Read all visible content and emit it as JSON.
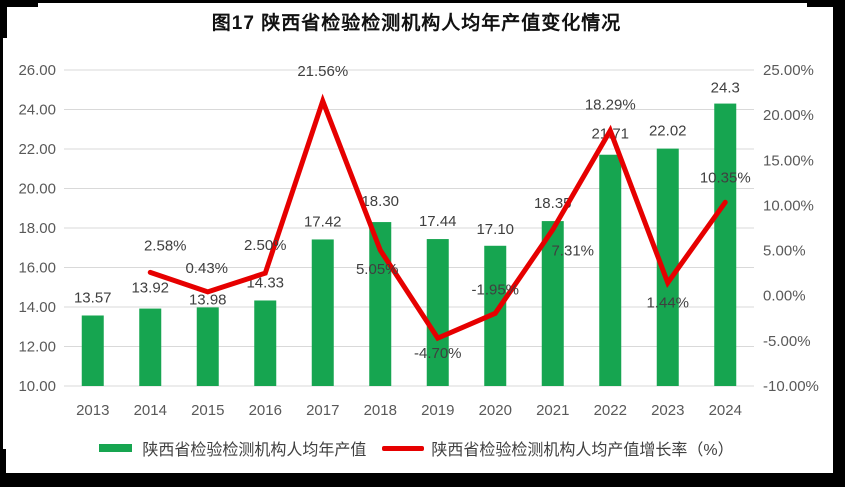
{
  "title": "图17 陕西省检验检测机构人均年产值变化情况",
  "colors": {
    "frame": "#000000",
    "background": "#ffffff",
    "bar_green": "#16a550",
    "line_red": "#e60000",
    "axis_text": "#595959",
    "data_label_text": "#3f3f3f",
    "gridline": "#d9d9d9",
    "title_text": "#111111"
  },
  "chart_data": {
    "type": "bar+line combo",
    "categories": [
      "2013",
      "2014",
      "2015",
      "2016",
      "2017",
      "2018",
      "2019",
      "2020",
      "2021",
      "2022",
      "2023",
      "2024"
    ],
    "series": [
      {
        "name": "陕西省检验检测机构人均年产值",
        "type": "bar",
        "axis": "left",
        "color": "#16a550",
        "values": [
          13.57,
          13.92,
          13.98,
          14.33,
          17.42,
          18.3,
          17.44,
          17.1,
          18.35,
          21.71,
          22.02,
          24.3
        ],
        "labels": [
          "13.57",
          "13.92",
          "13.98",
          "14.33",
          "17.42",
          "18.30",
          "17.44",
          "17.10",
          "18.35",
          "21.71",
          "22.02",
          "24.3"
        ]
      },
      {
        "name": "陕西省检验检测机构人均产值增长率（%）",
        "type": "line",
        "axis": "right",
        "color": "#e60000",
        "values": [
          null,
          2.58,
          0.43,
          2.5,
          21.56,
          5.05,
          -4.7,
          -1.95,
          7.31,
          18.29,
          1.44,
          10.35
        ],
        "labels": [
          "",
          "2.58%",
          "0.43%",
          "2.50%",
          "21.56%",
          "5.05%",
          "-4.70%",
          "-1.95%",
          "7.31%",
          "18.29%",
          "1.44%",
          "10.35%"
        ]
      }
    ],
    "left_axis": {
      "min": 10,
      "max": 26,
      "step": 2,
      "tick_labels": [
        "26.00",
        "24.00",
        "22.00",
        "20.00",
        "18.00",
        "16.00",
        "14.00",
        "12.00",
        "10.00"
      ]
    },
    "right_axis": {
      "min": -10,
      "max": 25,
      "step": 5,
      "tick_labels": [
        "25.00%",
        "20.00%",
        "15.00%",
        "10.00%",
        "5.00%",
        "0.00%",
        "-5.00%",
        "-10.00%"
      ]
    },
    "grid": "horizontal",
    "legend_position": "bottom"
  },
  "legend": {
    "items": [
      {
        "label": "陕西省检验检测机构人均年产值",
        "marker": "rect",
        "color": "#16a550"
      },
      {
        "label": "陕西省检验检测机构人均产值增长率（%）",
        "marker": "line",
        "color": "#e60000"
      }
    ]
  }
}
